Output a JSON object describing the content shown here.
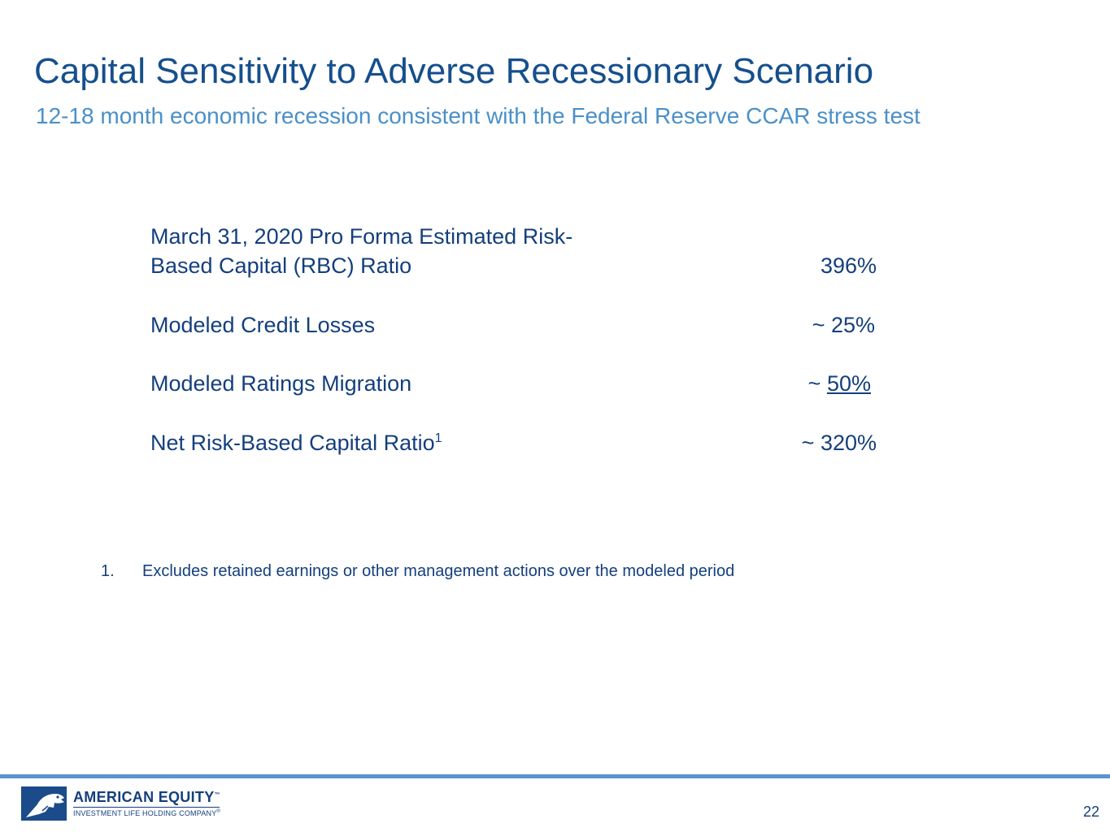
{
  "header": {
    "title": "Capital Sensitivity to Adverse Recessionary Scenario",
    "subtitle": "12-18 month economic recession consistent with the Federal Reserve CCAR stress test"
  },
  "metrics": [
    {
      "label_line1": "March 31, 2020 Pro Forma Estimated Risk-",
      "label_line2": "Based Capital (RBC) Ratio",
      "value": "396%"
    },
    {
      "label": "Modeled Credit Losses",
      "value": "~ 25%"
    },
    {
      "label": "Modeled Ratings Migration",
      "value_prefix": "~ ",
      "value": "50%"
    },
    {
      "label": "Net Risk-Based Capital Ratio",
      "label_sup": "1",
      "value": "~ 320%"
    }
  ],
  "footnote": {
    "number": "1.",
    "text": "Excludes retained earnings or other management actions over the modeled period"
  },
  "footer": {
    "logo_name": "AMERICAN EQUITY",
    "logo_tagline": "INVESTMENT LIFE HOLDING COMPANY",
    "logo_tm": "™",
    "logo_reg": "®",
    "page_number": "22"
  },
  "colors": {
    "title": "#154f8d",
    "subtitle": "#4a90c8",
    "body": "#143f7d",
    "rule": "#5a93cd"
  }
}
